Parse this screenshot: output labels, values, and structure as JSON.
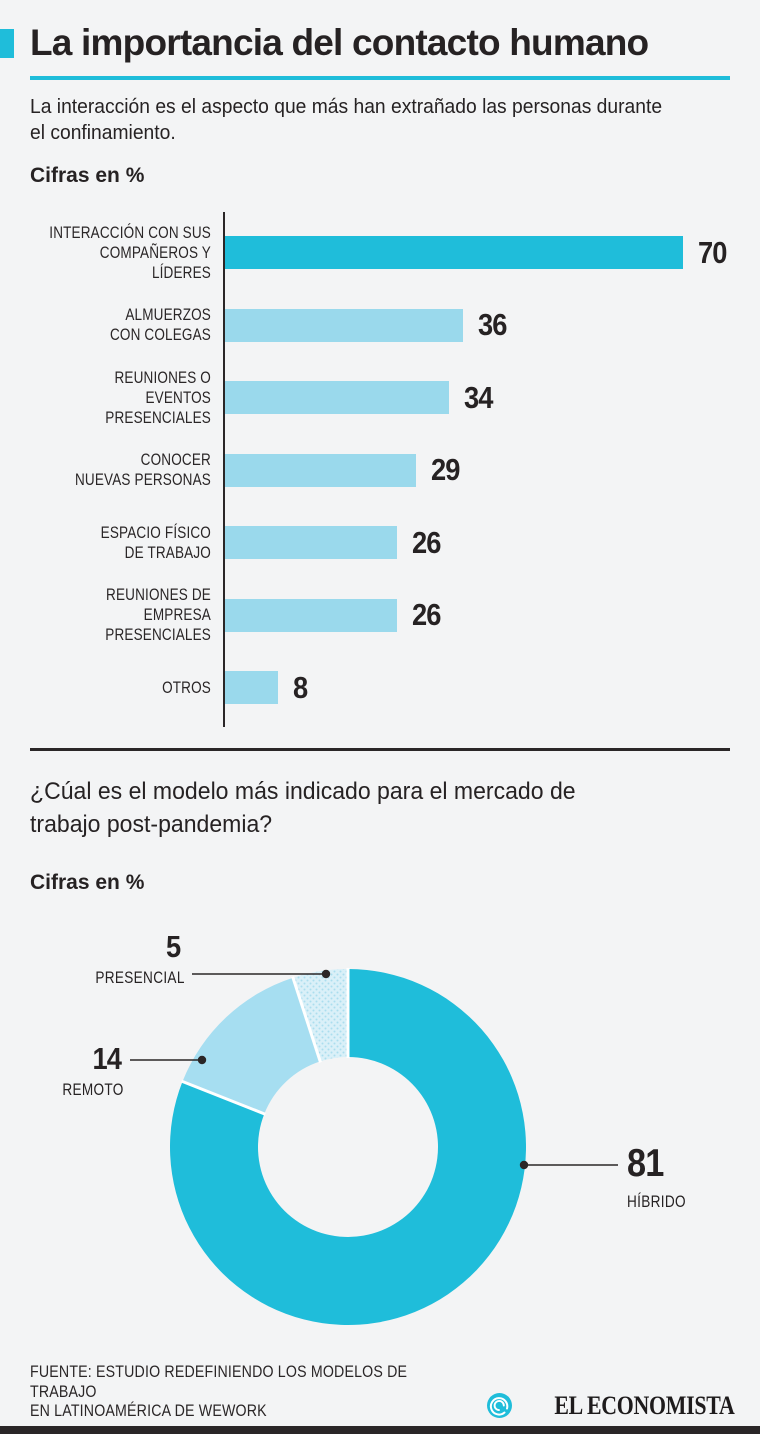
{
  "accent_color": "#1fbdda",
  "dark_color": "#2a2627",
  "background_color": "#f3f4f5",
  "header": {
    "title": "La importancia del contacto humano",
    "subtitle": "La interacción es el aspecto que más han extrañado las personas durante\nel confinamiento.",
    "units_label": "Cifras en %"
  },
  "section2": {
    "question": "¿Cúal es el modelo más indicado para el mercado de\ntrabajo post-pandemia?",
    "units_label": "Cifras en %"
  },
  "chart_data": [
    {
      "type": "bar",
      "orientation": "horizontal",
      "title": "Cifras en %",
      "unit": "%",
      "categories": [
        "INTERACCIÓN CON SUS COMPAÑEROS Y LÍDERES",
        "ALMUERZOS CON COLEGAS",
        "REUNIONES O EVENTOS PRESENCIALES",
        "CONOCER NUEVAS PERSONAS",
        "ESPACIO FÍSICO DE TRABAJO",
        "REUNIONES DE EMPRESA PRESENCIALES",
        "OTROS"
      ],
      "categories_lines": [
        [
          "INTERACCIÓN CON SUS",
          "COMPAÑEROS Y LÍDERES"
        ],
        [
          "ALMUERZOS",
          "CON COLEGAS"
        ],
        [
          "REUNIONES O",
          "EVENTOS PRESENCIALES"
        ],
        [
          "CONOCER",
          "NUEVAS PERSONAS"
        ],
        [
          "ESPACIO FÍSICO",
          "DE TRABAJO"
        ],
        [
          "REUNIONES DE",
          "EMPRESA PRESENCIALES"
        ],
        [
          "OTROS"
        ]
      ],
      "values": [
        70,
        36,
        34,
        29,
        26,
        26,
        8
      ],
      "xlim": [
        0,
        75
      ],
      "grid": false,
      "bar_colors": {
        "first": "#1fbdda",
        "rest": "#9ad9ec"
      }
    },
    {
      "type": "pie",
      "donut": true,
      "title": "Cifras en %",
      "unit": "%",
      "labels": [
        "HÍBRIDO",
        "REMOTO",
        "PRESENCIAL"
      ],
      "values": [
        81,
        14,
        5
      ],
      "colors": [
        "#1fbdda",
        "#a6def1",
        "#daf0f8"
      ],
      "textures": [
        null,
        null,
        "dotted"
      ],
      "start_angle_deg": 0,
      "direction": "clockwise",
      "legend_position": "callout-labels"
    }
  ],
  "footer": {
    "source_lines": [
      "FUENTE: ESTUDIO REDEFINIENDO LOS MODELOS DE TRABAJO",
      "EN LATINOAMÉRICA DE WEWORK"
    ],
    "brand": "EL ECONOMISTA"
  }
}
